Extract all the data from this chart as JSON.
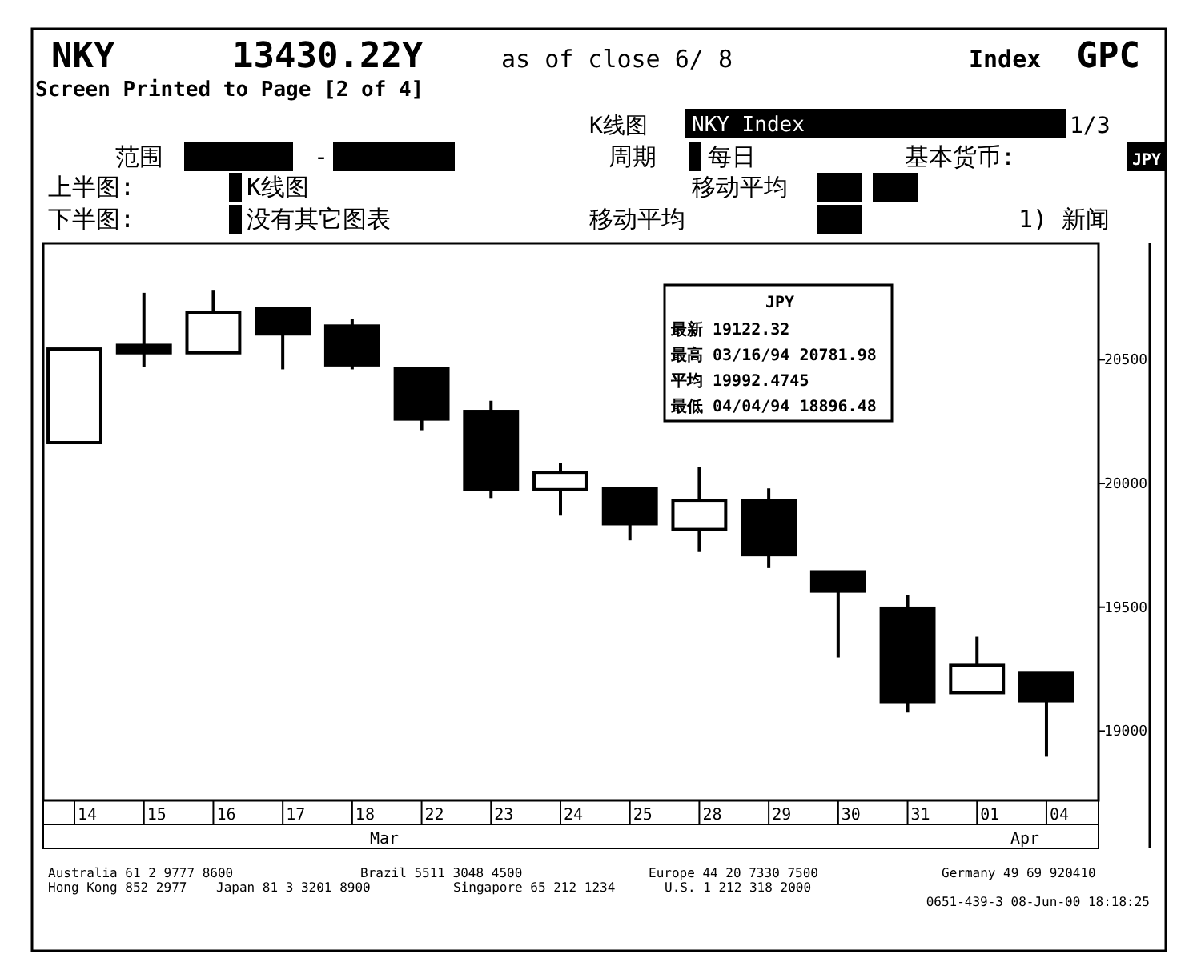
{
  "chart_data": {
    "type": "candlestick",
    "title": "NKY",
    "subtitle": "Screen Printed to Page [2 of 4]",
    "categories": [
      "14",
      "15",
      "16",
      "17",
      "18",
      "22",
      "23",
      "24",
      "25",
      "28",
      "29",
      "30",
      "31",
      "01",
      "04"
    ],
    "ohlc": [
      [
        20165,
        20543,
        20165,
        20543
      ],
      [
        20558,
        20770,
        20472,
        20528
      ],
      [
        20528,
        20781.98,
        20528,
        20692
      ],
      [
        20705,
        20705,
        20461,
        20604
      ],
      [
        20636,
        20666,
        20461,
        20479
      ],
      [
        20463,
        20463,
        20215,
        20260
      ],
      [
        20291,
        20334,
        19941,
        19975
      ],
      [
        19975,
        20084,
        19870,
        20045
      ],
      [
        19980,
        19980,
        19770,
        19837
      ],
      [
        19814,
        20068,
        19723,
        19932
      ],
      [
        19932,
        19980,
        19658,
        19712
      ],
      [
        19643,
        19643,
        19297,
        19565
      ],
      [
        19496,
        19550,
        19075,
        19116
      ],
      [
        19155,
        19381,
        19155,
        19265
      ],
      [
        19233,
        19233,
        18896.48,
        19122.32
      ]
    ],
    "ylim": [
      18720,
      20970
    ],
    "yticks": [
      19000,
      19500,
      20000,
      20500
    ],
    "annotations": [
      "13430.22Y",
      "as of close 6/ 8",
      "Index",
      "GPC",
      "K线图",
      "NKY Index",
      "1/3",
      "范围",
      "-",
      "周期",
      "每日",
      "基本货币:",
      "JPY",
      "上半图:",
      "K线图",
      "移动平均",
      "下半图:",
      "没有其它图表",
      "移动平均",
      "1) 新闻",
      "JPY",
      "最新  19122.32",
      "最高  03/16/94 20781.98",
      "平均 19992.4745",
      "最低  04/04/94 18896.48",
      "Australia 61 2 9777 8600",
      "Brazil 5511 3048 4500",
      "Europe 44 20 7330 7500",
      "Germany 49 69 920410",
      "Hong Kong 852 2977",
      "Japan 81 3 3201 8900",
      "Singapore 65 212 1234",
      "U.S. 1 212 318 2000",
      "0651-439-3 08-Jun-00 18:18:25",
      "Mar",
      "Apr"
    ]
  }
}
